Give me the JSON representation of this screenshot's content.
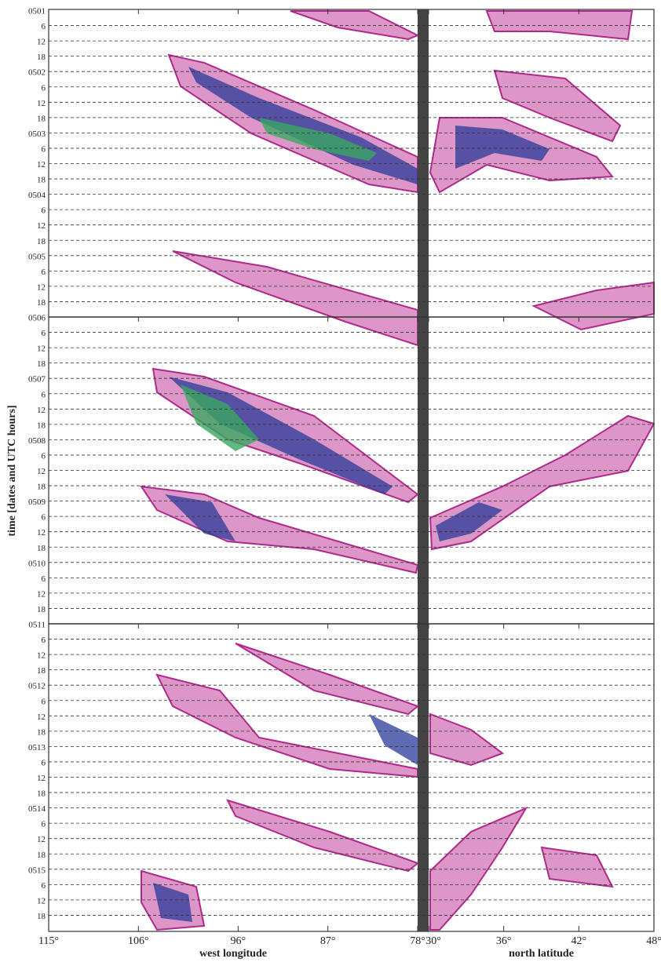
{
  "chart_data": {
    "type": "hovmoller",
    "y_label": "time [dates and UTC hours]",
    "time_labels": [
      "0501",
      "6",
      "12",
      "18",
      "0502",
      "6",
      "12",
      "18",
      "0503",
      "6",
      "12",
      "18",
      "0504",
      "6",
      "12",
      "18",
      "0505",
      "6",
      "12",
      "18",
      "0506",
      "6",
      "12",
      "18",
      "0507",
      "6",
      "12",
      "18",
      "0508",
      "6",
      "12",
      "18",
      "0509",
      "6",
      "12",
      "18",
      "0510",
      "6",
      "12",
      "18",
      "0511",
      "6",
      "12",
      "18",
      "0512",
      "6",
      "12",
      "18",
      "0513",
      "6",
      "12",
      "18",
      "0514",
      "6",
      "12",
      "18",
      "0515",
      "6",
      "12",
      "18"
    ],
    "panels": [
      {
        "x_label": "west longitude",
        "xlim": [
          115,
          78
        ],
        "xticks": [
          {
            "value": 115,
            "label": "115°"
          },
          {
            "value": 106,
            "label": "106°"
          },
          {
            "value": 96,
            "label": "96°"
          },
          {
            "value": 87,
            "label": "87°"
          },
          {
            "value": 78,
            "label": "78°"
          }
        ]
      },
      {
        "x_label": "north latitude",
        "xlim": [
          30,
          48
        ],
        "xticks": [
          {
            "value": 30,
            "label": "30°"
          },
          {
            "value": 36,
            "label": "36°"
          },
          {
            "value": 42,
            "label": "42°"
          },
          {
            "value": 48,
            "label": "48°"
          }
        ]
      }
    ]
  }
}
